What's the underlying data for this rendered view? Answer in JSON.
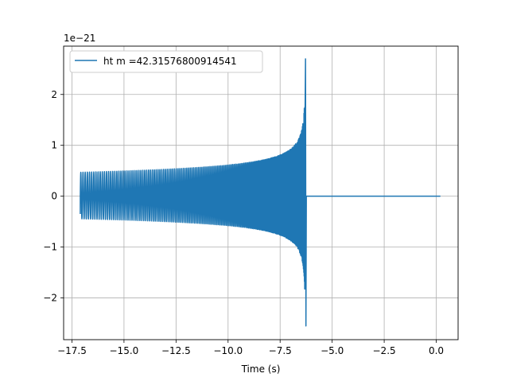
{
  "chart_data": {
    "type": "line",
    "title": "",
    "xlabel": "Time (s)",
    "ylabel": "",
    "xlim": [
      -17.9,
      1.05
    ],
    "ylim": [
      -2.82,
      2.95
    ],
    "y_scale_label": "1e−21",
    "grid": true,
    "legend_position": "upper-left",
    "x_ticks": [
      -17.5,
      -15.0,
      -12.5,
      -10.0,
      -7.5,
      -5.0,
      -2.5,
      0.0
    ],
    "x_tick_labels": [
      "−17.5",
      "−15.0",
      "−12.5",
      "−10.0",
      "−7.5",
      "−5.0",
      "−2.5",
      "0.0"
    ],
    "y_ticks": [
      -2,
      -1,
      0,
      1,
      2
    ],
    "y_tick_labels": [
      "−2",
      "−1",
      "0",
      "1",
      "2"
    ],
    "series": [
      {
        "name": "ht m =42.31576800914541",
        "color": "#1f77b4",
        "description_points": {
          "t_start": -17.1,
          "t_merger": -6.3,
          "t_end": 0.2,
          "amp_start": 0.47,
          "amp_peak_pos": 2.7,
          "amp_peak_neg": -2.55,
          "pre_start_value": -0.35
        }
      }
    ]
  }
}
